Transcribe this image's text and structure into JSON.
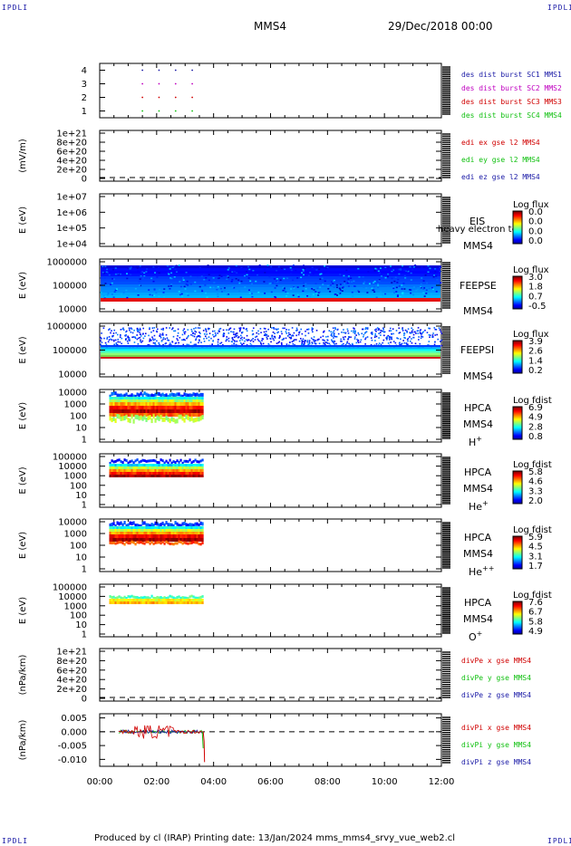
{
  "page": {
    "corner_label": "IPDLI",
    "spacecraft_title": "MMS4",
    "date_title": "29/Dec/2018 00:00",
    "footer": "Produced by cl (IRAP)   Printing date: 13/Jan/2024   mms_mms4_srvy_vue_web2.cl"
  },
  "chart_data": [
    {
      "type": "scatter",
      "panel": "des-dist-burst",
      "y_ticks": [
        "4",
        "3",
        "2",
        "1"
      ],
      "y_values": [
        4,
        3,
        2,
        1
      ],
      "ylim": [
        0.5,
        4.5
      ],
      "series": [
        {
          "name": "des dist burst SC1 MMS1",
          "color": "#1a1aa6",
          "y": 4
        },
        {
          "name": "des dist burst SC2 MMS2",
          "color": "#c000c0",
          "y": 3
        },
        {
          "name": "des dist burst SC3 MMS3",
          "color": "#d00000",
          "y": 2
        },
        {
          "name": "des dist burst SC4 MMS4",
          "color": "#10c010",
          "y": 1
        }
      ],
      "x": [
        "01:30",
        "02:05",
        "02:40",
        "03:15"
      ]
    },
    {
      "type": "line",
      "panel": "edi-e-field",
      "ylabel": "(mV/m)",
      "y_ticks": [
        "1e+21",
        "8e+20",
        "6e+20",
        "4e+20",
        "2e+20",
        "0"
      ],
      "series": [
        {
          "name": "edi ex gse l2 MMS4",
          "color": "#d00000"
        },
        {
          "name": "edi ey gse l2 MMS4",
          "color": "#10c010"
        },
        {
          "name": "edi ez gse l2 MMS4",
          "color": "#1a1aa6"
        }
      ],
      "dashed_zero": true
    },
    {
      "type": "heatmap",
      "panel": "eis",
      "ylabel": "E (eV)",
      "y_ticks": [
        "1e+07",
        "1e+06",
        "1e+05",
        "1e+04"
      ],
      "side_label_1": "EIS",
      "side_label_2": "MMS4",
      "overlay_text": "heavy electron to",
      "colorbar_title": "Log flux",
      "colorbar_ticks": [
        "0.0",
        "0.0",
        "0.0",
        "0.0"
      ]
    },
    {
      "type": "heatmap",
      "panel": "feeps-e",
      "ylabel": "E (eV)",
      "y_ticks": [
        "1000000",
        "100000",
        "10000"
      ],
      "side_label_1": "FEEPSE",
      "side_label_2": "MMS4",
      "colorbar_title": "Log flux",
      "colorbar_ticks": [
        "3.0",
        "1.8",
        "0.7",
        "-0.5"
      ],
      "x_extent": [
        "00:00",
        "12:00"
      ]
    },
    {
      "type": "heatmap",
      "panel": "feeps-i",
      "ylabel": "E (eV)",
      "y_ticks": [
        "1000000",
        "100000",
        "10000"
      ],
      "side_label_1": "FEEPSI",
      "side_label_2": "MMS4",
      "colorbar_title": "Log flux",
      "colorbar_ticks": [
        "3.9",
        "2.6",
        "1.4",
        "0.2"
      ],
      "x_extent": [
        "00:00",
        "12:00"
      ]
    },
    {
      "type": "heatmap",
      "panel": "hpca-h",
      "ylabel": "E (eV)",
      "y_ticks": [
        "10000",
        "1000",
        "100",
        "10",
        "1"
      ],
      "side_label_1": "HPCA",
      "side_label_2": "MMS4",
      "species": "H",
      "species_charge": "+",
      "colorbar_title": "Log fdist",
      "colorbar_ticks": [
        "6.9",
        "4.9",
        "2.8",
        "0.8"
      ],
      "x_extent": [
        "00:20",
        "03:40"
      ]
    },
    {
      "type": "heatmap",
      "panel": "hpca-he",
      "ylabel": "E (eV)",
      "y_ticks": [
        "100000",
        "10000",
        "1000",
        "100",
        "10",
        "1"
      ],
      "side_label_1": "HPCA",
      "side_label_2": "MMS4",
      "species": "He",
      "species_charge": "+",
      "colorbar_title": "Log fdist",
      "colorbar_ticks": [
        "5.8",
        "4.6",
        "3.3",
        "2.0"
      ],
      "x_extent": [
        "00:20",
        "03:40"
      ]
    },
    {
      "type": "heatmap",
      "panel": "hpca-hepp",
      "ylabel": "E (eV)",
      "y_ticks": [
        "10000",
        "1000",
        "100",
        "10",
        "1"
      ],
      "side_label_1": "HPCA",
      "side_label_2": "MMS4",
      "species": "He",
      "species_charge": "++",
      "colorbar_title": "Log fdist",
      "colorbar_ticks": [
        "5.9",
        "4.5",
        "3.1",
        "1.7"
      ],
      "x_extent": [
        "00:20",
        "03:40"
      ]
    },
    {
      "type": "heatmap",
      "panel": "hpca-o",
      "ylabel": "E (eV)",
      "y_ticks": [
        "100000",
        "10000",
        "1000",
        "100",
        "10",
        "1"
      ],
      "side_label_1": "HPCA",
      "side_label_2": "MMS4",
      "species": "O",
      "species_charge": "+",
      "colorbar_title": "Log fdist",
      "colorbar_ticks": [
        "7.6",
        "6.7",
        "5.8",
        "4.9"
      ],
      "x_extent": [
        "00:20",
        "03:40"
      ]
    },
    {
      "type": "line",
      "panel": "divpe",
      "ylabel": "(nPa/km)",
      "y_ticks": [
        "1e+21",
        "8e+20",
        "6e+20",
        "4e+20",
        "2e+20",
        "0"
      ],
      "series": [
        {
          "name": "divPe x gse MMS4",
          "color": "#d00000"
        },
        {
          "name": "divPe y gse MMS4",
          "color": "#10c010"
        },
        {
          "name": "divPe z gse MMS4",
          "color": "#1a1aa6"
        }
      ],
      "dashed_zero": true
    },
    {
      "type": "line",
      "panel": "divpi",
      "ylabel": "(nPa/km)",
      "y_ticks": [
        "0.005",
        "0.000",
        "-0.005",
        "-0.010"
      ],
      "y_values": [
        0.005,
        0.0,
        -0.005,
        -0.01
      ],
      "ylim": [
        -0.0125,
        0.0065
      ],
      "series": [
        {
          "name": "divPi x gse MMS4",
          "color": "#d00000"
        },
        {
          "name": "divPi y gse MMS4",
          "color": "#10c010"
        },
        {
          "name": "divPi z gse MMS4",
          "color": "#1a1aa6"
        }
      ],
      "x_extent": [
        "00:40",
        "03:40"
      ],
      "dashed_zero": true
    }
  ],
  "x_axis": {
    "tick_labels": [
      "00:00",
      "02:00",
      "04:00",
      "06:00",
      "08:00",
      "10:00",
      "12:00"
    ],
    "range_hours": [
      0,
      12
    ]
  }
}
